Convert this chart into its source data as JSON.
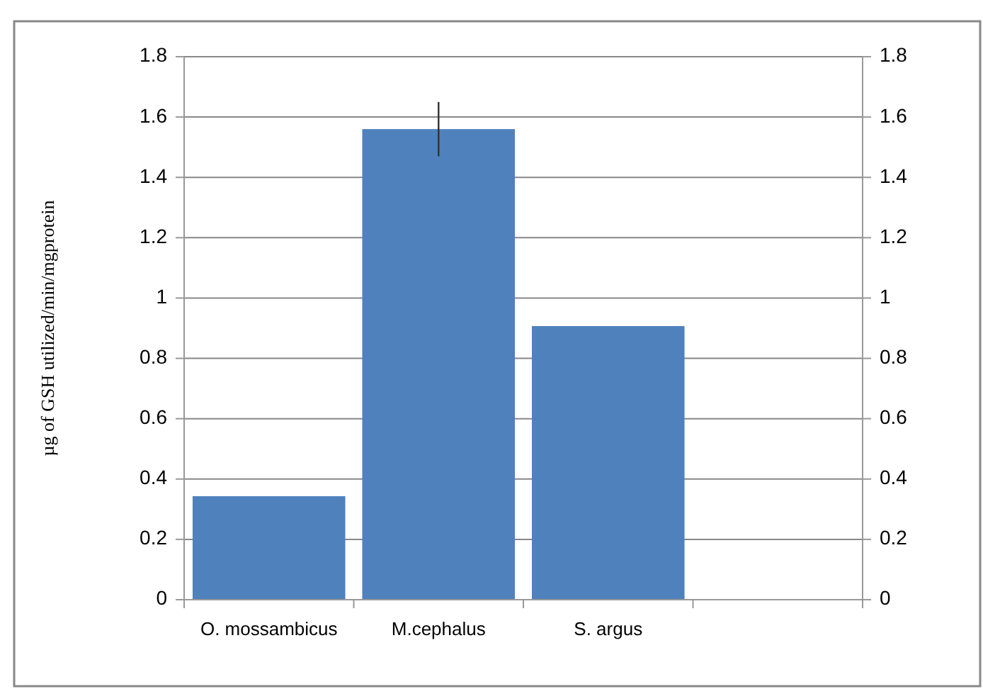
{
  "chart_data": {
    "type": "bar",
    "ylabel": "µg of GSH utilized/min/mgprotein",
    "categories": [
      "O. mossambicus",
      "M.cephalus",
      "S. argus",
      null
    ],
    "values": [
      0.343,
      1.56,
      0.907,
      null
    ],
    "errors": [
      null,
      0.09,
      null,
      null
    ],
    "color": "#4f81bd",
    "ylim": [
      0,
      1.8
    ],
    "yticks": [
      0,
      0.2,
      0.4,
      0.6,
      0.8,
      1,
      1.2,
      1.4,
      1.6,
      1.8
    ],
    "y2lim": [
      0,
      1.8
    ],
    "y2ticks": [
      0,
      0.2,
      0.4,
      0.6,
      0.8,
      1,
      1.2,
      1.4,
      1.6,
      1.8
    ],
    "grid": "y"
  }
}
